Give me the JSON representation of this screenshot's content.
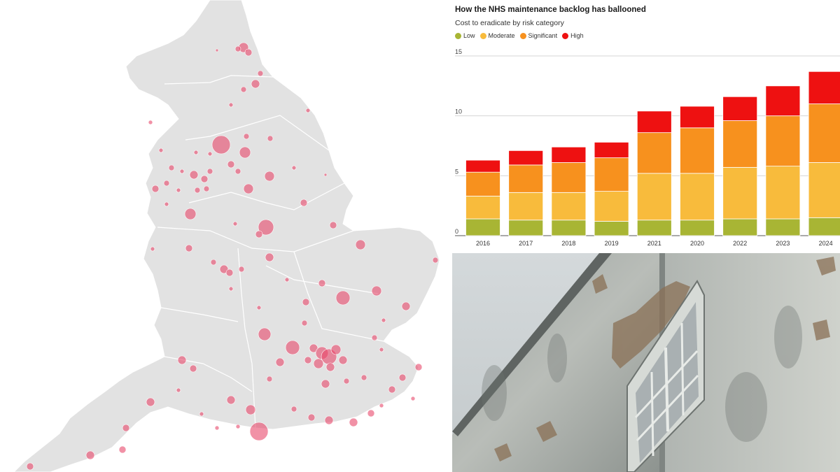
{
  "chart_data": {
    "type": "bar",
    "stacked": true,
    "title": "How the NHS maintenance backlog has ballooned",
    "subtitle": "Cost to eradicate by risk category",
    "categories": [
      "2016",
      "2017",
      "2018",
      "2019",
      "2021",
      "2020",
      "2022",
      "2023",
      "2024"
    ],
    "series": [
      {
        "name": "Low",
        "color": "#a8b534",
        "values": [
          1.4,
          1.3,
          1.3,
          1.2,
          1.3,
          1.3,
          1.4,
          1.4,
          1.5
        ]
      },
      {
        "name": "Moderate",
        "color": "#f8bb3c",
        "values": [
          1.9,
          2.3,
          2.3,
          2.5,
          3.9,
          3.9,
          4.3,
          4.4,
          4.6
        ]
      },
      {
        "name": "Significant",
        "color": "#f7911e",
        "values": [
          2.0,
          2.3,
          2.5,
          2.8,
          3.4,
          3.8,
          3.9,
          4.2,
          4.9
        ]
      },
      {
        "name": "High",
        "color": "#ee1111",
        "values": [
          1.0,
          1.2,
          1.3,
          1.3,
          1.8,
          1.8,
          2.0,
          2.5,
          2.7
        ]
      }
    ],
    "yticks": [
      0,
      5,
      10,
      15
    ],
    "ylim": [
      0,
      15
    ],
    "grid": true,
    "legend": "top-left"
  },
  "map": {
    "region": "England",
    "marker_color": "#e8486a",
    "land_color": "#e2e2e2"
  },
  "photo": {
    "subject": "dilapidated hospital building with peeling paint"
  }
}
